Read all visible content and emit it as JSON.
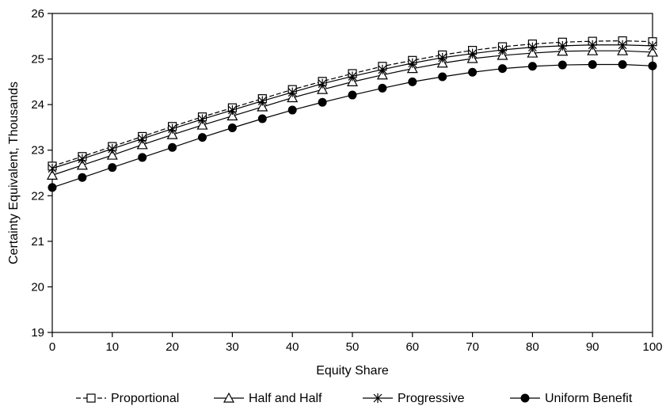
{
  "chart_data": {
    "type": "line",
    "title": "",
    "xlabel": "Equity Share",
    "ylabel": "Certainty Equivalent, Thousands",
    "xlim": [
      0,
      100
    ],
    "ylim": [
      19,
      26
    ],
    "x_ticks": [
      0,
      10,
      20,
      30,
      40,
      50,
      60,
      70,
      80,
      90,
      100
    ],
    "y_ticks": [
      19,
      20,
      21,
      22,
      23,
      24,
      25,
      26
    ],
    "grid": false,
    "legend_position": "bottom",
    "x": [
      0,
      5,
      10,
      15,
      20,
      25,
      30,
      35,
      40,
      45,
      50,
      55,
      60,
      65,
      70,
      75,
      80,
      85,
      90,
      95,
      100
    ],
    "series": [
      {
        "name": "Proportional",
        "marker": "open-square",
        "line_style": "dashed",
        "values": [
          22.65,
          22.86,
          23.08,
          23.3,
          23.52,
          23.73,
          23.93,
          24.13,
          24.33,
          24.51,
          24.68,
          24.84,
          24.97,
          25.09,
          25.19,
          25.27,
          25.33,
          25.37,
          25.39,
          25.4,
          25.38
        ]
      },
      {
        "name": "Half and Half",
        "marker": "open-triangle",
        "line_style": "solid",
        "values": [
          22.45,
          22.67,
          22.89,
          23.12,
          23.34,
          23.55,
          23.75,
          23.95,
          24.15,
          24.33,
          24.5,
          24.65,
          24.79,
          24.91,
          25.01,
          25.08,
          25.13,
          25.17,
          25.18,
          25.18,
          25.15
        ]
      },
      {
        "name": "Progressive",
        "marker": "asterisk",
        "line_style": "solid",
        "values": [
          22.6,
          22.81,
          23.03,
          23.25,
          23.47,
          23.68,
          23.88,
          24.08,
          24.27,
          24.46,
          24.62,
          24.77,
          24.91,
          25.03,
          25.12,
          25.2,
          25.26,
          25.29,
          25.31,
          25.31,
          25.29
        ]
      },
      {
        "name": "Uniform Benefit",
        "marker": "filled-circle",
        "line_style": "solid",
        "values": [
          22.18,
          22.4,
          22.62,
          22.84,
          23.06,
          23.28,
          23.49,
          23.69,
          23.88,
          24.05,
          24.21,
          24.36,
          24.5,
          24.61,
          24.71,
          24.79,
          24.84,
          24.87,
          24.88,
          24.88,
          24.85
        ]
      }
    ]
  }
}
